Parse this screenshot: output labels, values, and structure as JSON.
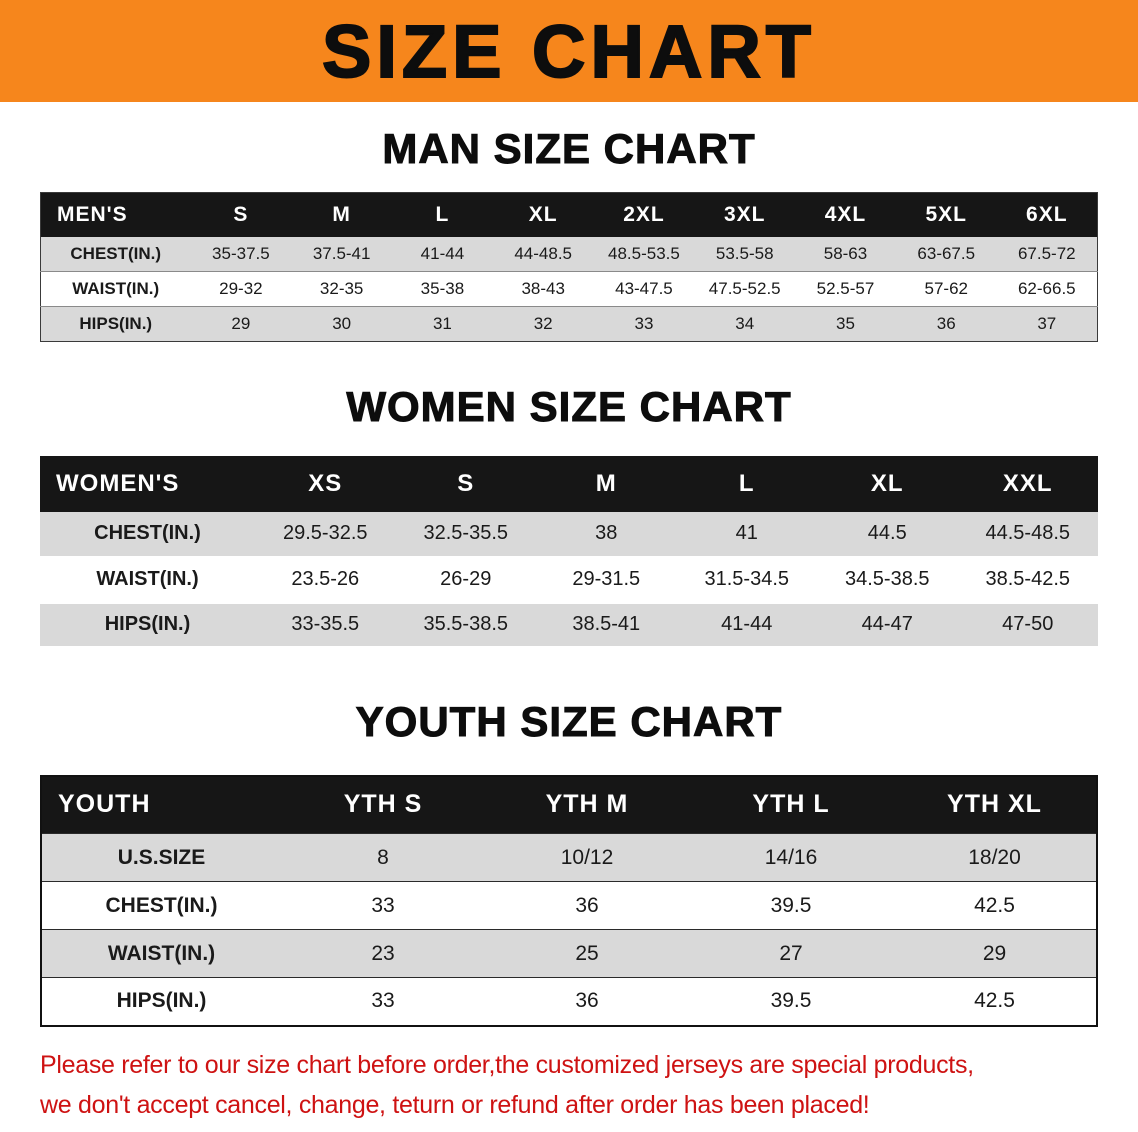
{
  "banner": {
    "title": "SIZE CHART"
  },
  "colors": {
    "banner_bg": "#f6861c",
    "header_bg": "#161616",
    "stripe": "#d9d9d9",
    "warning_red": "#ce1212"
  },
  "sections": [
    {
      "heading": "MAN SIZE CHART",
      "table": {
        "header": [
          "MEN'S",
          "S",
          "M",
          "L",
          "XL",
          "2XL",
          "3XL",
          "4XL",
          "5XL",
          "6XL"
        ],
        "rows": [
          [
            "CHEST(IN.)",
            "35-37.5",
            "37.5-41",
            "41-44",
            "44-48.5",
            "48.5-53.5",
            "53.5-58",
            "58-63",
            "63-67.5",
            "67.5-72"
          ],
          [
            "WAIST(IN.)",
            "29-32",
            "32-35",
            "35-38",
            "38-43",
            "43-47.5",
            "47.5-52.5",
            "52.5-57",
            "57-62",
            "62-66.5"
          ],
          [
            "HIPS(IN.)",
            "29",
            "30",
            "31",
            "32",
            "33",
            "34",
            "35",
            "36",
            "37"
          ]
        ]
      }
    },
    {
      "heading": "WOMEN SIZE CHART",
      "table": {
        "header": [
          "WOMEN'S",
          "XS",
          "S",
          "M",
          "L",
          "XL",
          "XXL"
        ],
        "rows": [
          [
            "CHEST(IN.)",
            "29.5-32.5",
            "32.5-35.5",
            "38",
            "41",
            "44.5",
            "44.5-48.5"
          ],
          [
            "WAIST(IN.)",
            "23.5-26",
            "26-29",
            "29-31.5",
            "31.5-34.5",
            "34.5-38.5",
            "38.5-42.5"
          ],
          [
            "HIPS(IN.)",
            "33-35.5",
            "35.5-38.5",
            "38.5-41",
            "41-44",
            "44-47",
            "47-50"
          ]
        ]
      }
    },
    {
      "heading": "YOUTH SIZE CHART",
      "table": {
        "header": [
          "YOUTH",
          "YTH S",
          "YTH M",
          "YTH L",
          "YTH XL"
        ],
        "rows": [
          [
            "U.S.SIZE",
            "8",
            "10/12",
            "14/16",
            "18/20"
          ],
          [
            "CHEST(IN.)",
            "33",
            "36",
            "39.5",
            "42.5"
          ],
          [
            "WAIST(IN.)",
            "23",
            "25",
            "27",
            "29"
          ],
          [
            "HIPS(IN.)",
            "33",
            "36",
            "39.5",
            "42.5"
          ]
        ]
      }
    }
  ],
  "footer": {
    "lines": [
      "Please refer to our size chart before order,the customized jerseys are special products,",
      "we don't accept cancel, change, teturn or refund after order has been placed!"
    ]
  }
}
